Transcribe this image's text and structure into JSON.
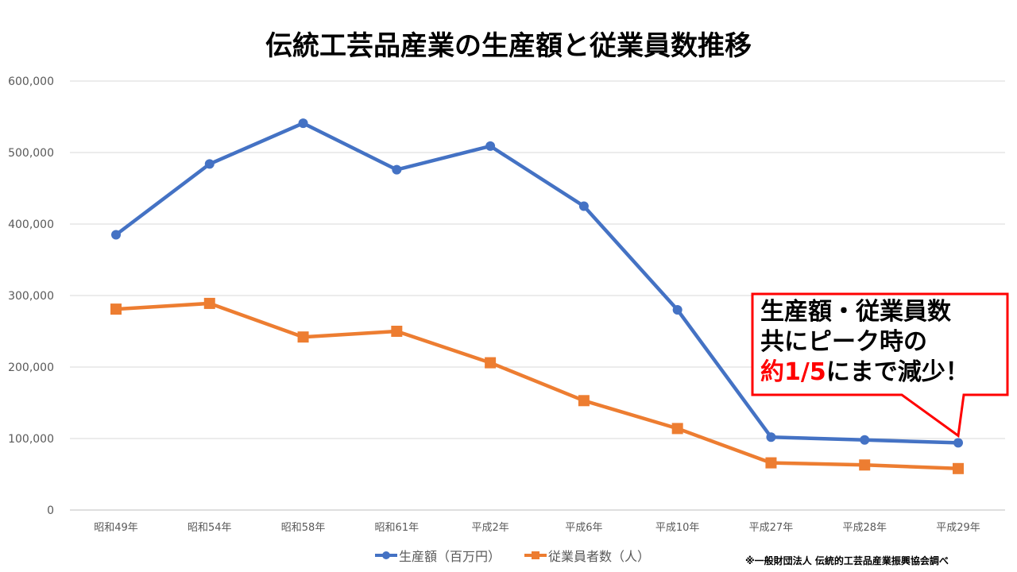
{
  "chart_data": {
    "type": "line",
    "title": "伝統工芸品産業の生産額と従業員数推移",
    "categories": [
      "昭和49年",
      "昭和54年",
      "昭和58年",
      "昭和61年",
      "平成2年",
      "平成6年",
      "平成10年",
      "平成27年",
      "平成28年",
      "平成29年"
    ],
    "ylim": [
      0,
      600000
    ],
    "yticks": [
      "0",
      "100,000",
      "200,000",
      "300,000",
      "400,000",
      "500,000",
      "600,000"
    ],
    "grid": true,
    "legend_position": "bottom",
    "series": [
      {
        "name": "生産額（百万円）",
        "color": "#4472c4",
        "marker": "circle",
        "values": [
          385000,
          484000,
          541000,
          476000,
          509000,
          425000,
          280000,
          102000,
          98000,
          94000
        ]
      },
      {
        "name": "従業員者数（人）",
        "color": "#ed7d31",
        "marker": "square",
        "values": [
          281000,
          289000,
          242000,
          250000,
          206000,
          153000,
          114000,
          66000,
          63000,
          58000
        ]
      }
    ]
  },
  "callout": {
    "line1": "生産額・従業員数",
    "line2": "共にピーク時の",
    "line3_red": "約1/5",
    "line3_rest": "にまで減少！",
    "border_color": "#ff0000"
  },
  "source_note": "※一般財団法人 伝統的工芸品産業振興協会調べ"
}
